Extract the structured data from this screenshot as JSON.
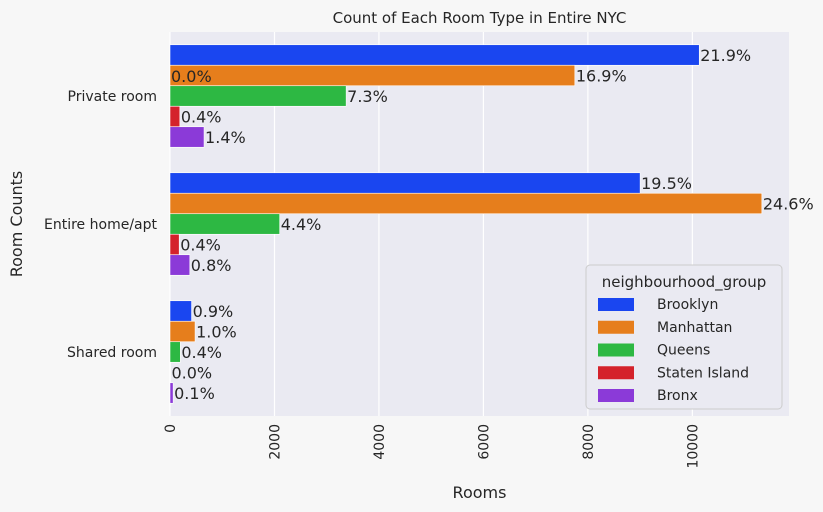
{
  "chart_data": {
    "type": "bar",
    "orientation": "horizontal",
    "title": "Count of Each Room Type in Entire NYC",
    "xlabel": "Rooms",
    "ylabel": "Room Counts",
    "xlim": [
      0,
      11850
    ],
    "x_ticks": [
      "0",
      "2000",
      "4000",
      "6000",
      "8000",
      "10000"
    ],
    "x_tick_values": [
      0,
      2000,
      4000,
      6000,
      8000,
      10000
    ],
    "categories": [
      "Private room",
      "Entire home/apt",
      "Shared room"
    ],
    "grid": true,
    "legend": {
      "title": "neighbourhood_group",
      "placement": "lower-right"
    },
    "series": [
      {
        "name": "Brooklyn",
        "color": "#1a46f0",
        "values": [
          10132,
          9000,
          413
        ],
        "labels": [
          "21.9%",
          "19.5%",
          "0.9%"
        ]
      },
      {
        "name": "Manhattan",
        "color": "#e67e1c",
        "values": [
          7750,
          11330,
          480
        ],
        "labels": [
          "16.9%",
          "24.6%",
          "1.0%"
        ]
      },
      {
        "name": "Queens",
        "color": "#2db843",
        "values": [
          3372,
          2100,
          198
        ],
        "labels": [
          "7.3%",
          "4.4%",
          "0.4%"
        ]
      },
      {
        "name": "Staten Island",
        "color": "#d4222b",
        "values": [
          188,
          176,
          9
        ],
        "labels": [
          "0.4%",
          "0.4%",
          "0.0%"
        ]
      },
      {
        "name": "Bronx",
        "color": "#8b3ad8",
        "values": [
          652,
          379,
          60
        ],
        "labels": [
          "1.4%",
          "0.8%",
          "0.1%"
        ]
      }
    ],
    "extra_annotations": [
      {
        "text": "0.0%",
        "category": "Private room"
      }
    ]
  }
}
